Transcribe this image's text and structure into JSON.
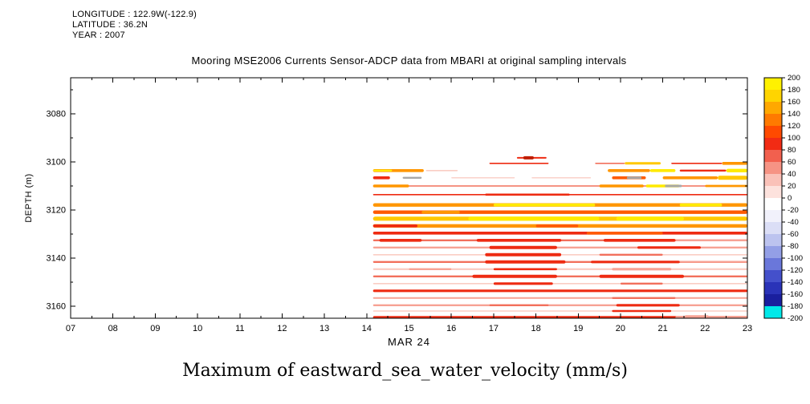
{
  "header": {
    "longitude": "LONGITUDE : 122.9W(-122.9)",
    "latitude": "LATITUDE : 36.2N",
    "year": "YEAR : 2007"
  },
  "title": "Mooring MSE2006 Currents Sensor-ADCP data from MBARI at original sampling intervals",
  "caption": "Maximum of eastward_sea_water_velocity (mm/s)",
  "chart_data": {
    "type": "heatmap",
    "title": "Mooring MSE2006 Currents Sensor-ADCP data from MBARI at original sampling intervals",
    "xlabel": "MAR 24",
    "ylabel": "DEPTH (m)",
    "units": "mm/s",
    "x_range": [
      7,
      23
    ],
    "x_ticks": [
      "07",
      "08",
      "09",
      "10",
      "11",
      "12",
      "13",
      "14",
      "15",
      "16",
      "17",
      "18",
      "19",
      "20",
      "21",
      "22",
      "23"
    ],
    "y_range": [
      3065,
      3165
    ],
    "y_tick_values": [
      3080,
      3100,
      3120,
      3140,
      3160
    ],
    "y_tick_labels": [
      "3080",
      "3100",
      "3120",
      "3140",
      "3160"
    ],
    "y_minor_ticks": [
      3070,
      3090,
      3110,
      3130,
      3150
    ],
    "data_start_hour": 14.15,
    "colorbar": {
      "min": -200,
      "max": 200,
      "step": 20,
      "labels": [
        "200",
        "180",
        "160",
        "140",
        "120",
        "100",
        "80",
        "60",
        "40",
        "20",
        "0",
        "-20",
        "-40",
        "-60",
        "-80",
        "-100",
        "-120",
        "-140",
        "-160",
        "-180",
        "-200"
      ],
      "colors": [
        "#FFF100",
        "#FFD400",
        "#FFA800",
        "#FF7A00",
        "#FF4A00",
        "#F22B14",
        "#F2604E",
        "#F69384",
        "#FAC1B8",
        "#FDE2DD",
        "#FFFFFF",
        "#F1F1FB",
        "#DBDEF6",
        "#BCC3EF",
        "#939FE6",
        "#6A77DA",
        "#4450CB",
        "#2A33B8",
        "#1A1F9E",
        "#00E8E8"
      ]
    },
    "palette": {
      "Y": "#FFEA00",
      "G": "#FFC800",
      "O": "#FF9600",
      "D": "#FF5A00",
      "R": "#EE2B12",
      "B": "#BF1D00",
      "r": "#F2705C",
      "P": "#F7A294",
      "p": "#FACDC4",
      "X": "#A8A8A8"
    },
    "stripes": [
      {
        "depth": 3098.3,
        "segments": [
          [
            17.55,
            18.25,
            "R",
            1.0
          ],
          [
            17.7,
            17.95,
            "B",
            2.0
          ]
        ]
      },
      {
        "depth": 3100.6,
        "segments": [
          [
            16.9,
            18.3,
            "R",
            0.8
          ],
          [
            19.4,
            20.1,
            "r",
            0.8
          ],
          [
            20.1,
            20.95,
            "G",
            1.5
          ],
          [
            21.2,
            22.4,
            "R",
            0.8
          ],
          [
            22.4,
            23,
            "O",
            1.8
          ]
        ]
      },
      {
        "depth": 3103.6,
        "segments": [
          [
            14.15,
            15.35,
            "O",
            1.8
          ],
          [
            14.15,
            14.6,
            "Y",
            1.2
          ],
          [
            15.4,
            16.15,
            "p",
            0.8
          ],
          [
            19.7,
            20.7,
            "O",
            1.8
          ],
          [
            20.7,
            21.3,
            "Y",
            1.8
          ],
          [
            21.4,
            22.5,
            "R",
            1.2
          ],
          [
            22.5,
            23,
            "Y",
            2.2
          ]
        ]
      },
      {
        "depth": 3106.6,
        "segments": [
          [
            14.15,
            14.55,
            "R",
            1.8
          ],
          [
            14.85,
            15.3,
            "X",
            1.2
          ],
          [
            16.0,
            17.5,
            "p",
            0.7
          ],
          [
            17.9,
            19.3,
            "p",
            0.7
          ],
          [
            19.8,
            20.6,
            "D",
            1.8
          ],
          [
            20.15,
            20.5,
            "X",
            1.5
          ],
          [
            21.0,
            22.3,
            "O",
            1.8
          ],
          [
            22.3,
            23,
            "G",
            2.5
          ]
        ]
      },
      {
        "depth": 3110.0,
        "segments": [
          [
            14.15,
            23,
            "r",
            0.8
          ],
          [
            14.15,
            15.0,
            "O",
            1.8
          ],
          [
            19.5,
            20.55,
            "O",
            1.8
          ],
          [
            20.6,
            21.4,
            "Y",
            1.8
          ],
          [
            21.05,
            21.45,
            "X",
            1.5
          ],
          [
            22.0,
            23,
            "O",
            1.4
          ]
        ]
      },
      {
        "depth": 3113.6,
        "segments": [
          [
            14.15,
            23,
            "R",
            0.8
          ],
          [
            16.8,
            18.8,
            "R",
            1.3
          ]
        ]
      },
      {
        "depth": 3117.9,
        "segments": [
          [
            14.15,
            23,
            "O",
            2.2
          ],
          [
            17.0,
            19.4,
            "Y",
            1.8
          ],
          [
            21.4,
            22.4,
            "Y",
            1.8
          ]
        ]
      },
      {
        "depth": 3120.9,
        "segments": [
          [
            14.15,
            23,
            "D",
            2.2
          ],
          [
            15.3,
            16.2,
            "O",
            1.8
          ]
        ]
      },
      {
        "depth": 3123.6,
        "segments": [
          [
            14.15,
            23,
            "G",
            2.6
          ],
          [
            16.4,
            19.5,
            "Y",
            2.6
          ],
          [
            19.9,
            21.5,
            "Y",
            2.6
          ]
        ]
      },
      {
        "depth": 3126.6,
        "segments": [
          [
            14.15,
            23,
            "O",
            2.2
          ],
          [
            14.15,
            15.2,
            "R",
            1.8
          ],
          [
            18.0,
            19.0,
            "D",
            1.8
          ]
        ]
      },
      {
        "depth": 3129.6,
        "segments": [
          [
            14.15,
            23,
            "R",
            1.8
          ],
          [
            19.2,
            21.0,
            "D",
            1.8
          ]
        ]
      },
      {
        "depth": 3132.6,
        "segments": [
          [
            14.15,
            23,
            "r",
            1.2
          ],
          [
            14.3,
            15.3,
            "R",
            1.8
          ],
          [
            16.6,
            18.6,
            "R",
            1.8
          ],
          [
            19.6,
            21.3,
            "R",
            1.8
          ],
          [
            21.3,
            23,
            "P",
            1.2
          ]
        ]
      },
      {
        "depth": 3135.6,
        "segments": [
          [
            14.15,
            23,
            "P",
            1.2
          ],
          [
            16.9,
            18.5,
            "R",
            2.0
          ],
          [
            20.4,
            21.9,
            "R",
            1.6
          ]
        ]
      },
      {
        "depth": 3138.6,
        "segments": [
          [
            14.15,
            23,
            "p",
            0.8
          ],
          [
            16.8,
            18.6,
            "R",
            2.0
          ],
          [
            19.5,
            21.0,
            "r",
            1.2
          ]
        ]
      },
      {
        "depth": 3141.6,
        "segments": [
          [
            14.15,
            23,
            "r",
            1.2
          ],
          [
            16.8,
            18.7,
            "R",
            2.0
          ],
          [
            19.3,
            21.4,
            "R",
            1.6
          ],
          [
            21.4,
            23,
            "P",
            1.0
          ]
        ]
      },
      {
        "depth": 3144.6,
        "segments": [
          [
            14.15,
            23,
            "p",
            1.2
          ],
          [
            15.0,
            16.0,
            "P",
            1.2
          ],
          [
            17.0,
            18.5,
            "R",
            1.3
          ],
          [
            19.8,
            21.2,
            "P",
            1.6
          ]
        ]
      },
      {
        "depth": 3147.6,
        "segments": [
          [
            14.15,
            23,
            "r",
            1.2
          ],
          [
            16.5,
            18.5,
            "R",
            2.0
          ],
          [
            19.5,
            21.5,
            "R",
            2.0
          ]
        ]
      },
      {
        "depth": 3150.6,
        "segments": [
          [
            14.15,
            23,
            "p",
            0.8
          ],
          [
            17.0,
            18.4,
            "R",
            1.6
          ],
          [
            20.0,
            21.0,
            "r",
            1.2
          ]
        ]
      },
      {
        "depth": 3153.6,
        "segments": [
          [
            14.15,
            23,
            "R",
            1.6
          ]
        ]
      },
      {
        "depth": 3156.6,
        "segments": [
          [
            14.15,
            23,
            "P",
            1.0
          ],
          [
            19.8,
            21.3,
            "r",
            1.2
          ]
        ]
      },
      {
        "depth": 3159.6,
        "segments": [
          [
            14.15,
            23,
            "P",
            1.2
          ],
          [
            16.9,
            18.3,
            "r",
            1.2
          ],
          [
            19.9,
            21.4,
            "R",
            1.6
          ]
        ]
      },
      {
        "depth": 3162.0,
        "segments": [
          [
            14.15,
            23,
            "p",
            0.8
          ],
          [
            19.8,
            21.2,
            "R",
            1.2
          ]
        ]
      },
      {
        "depth": 3164.6,
        "segments": [
          [
            14.15,
            23,
            "R",
            1.6
          ],
          [
            21.3,
            23,
            "P",
            1.8
          ],
          [
            21.5,
            22.1,
            "P",
            2.6
          ]
        ]
      }
    ]
  }
}
